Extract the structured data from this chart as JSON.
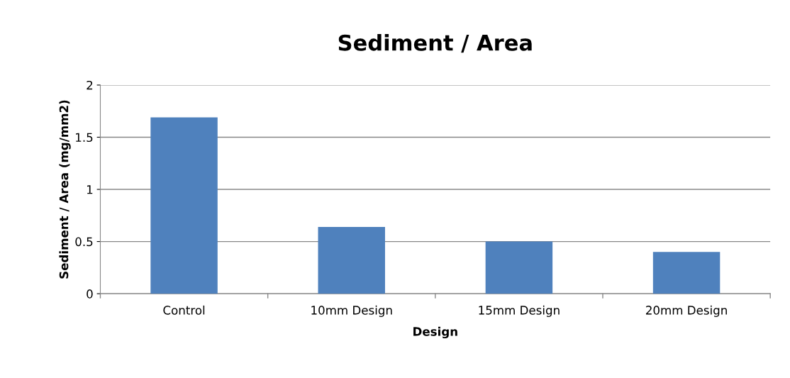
{
  "chart_data": {
    "type": "bar",
    "title": "Sediment / Area",
    "xlabel": "Design",
    "ylabel": "Sediment / Area (mg/mm2)",
    "categories": [
      "Control",
      "10mm Design",
      "15mm Design",
      "20mm Design"
    ],
    "values": [
      1.69,
      0.64,
      0.5,
      0.4
    ],
    "color": "#4f81bd",
    "ylim": [
      0,
      2
    ],
    "yticks": [
      0,
      0.5,
      1,
      1.5,
      2
    ],
    "grid": "y",
    "legend": false
  }
}
